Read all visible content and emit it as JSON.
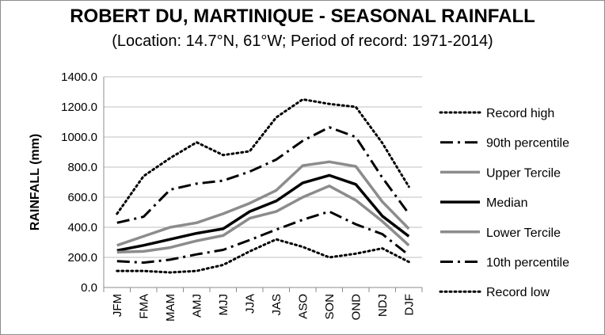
{
  "chart_data": {
    "type": "line",
    "title": "ROBERT DU, MARTINIQUE - SEASONAL RAINFALL",
    "subtitle": "(Location: 14.7°N, 61°W; Period of record: 1971-2014)",
    "ylabel": "RAINFALL (mm)",
    "xlabel": "",
    "ylim": [
      0,
      1400
    ],
    "y_ticks": [
      "0.0",
      "200.0",
      "400.0",
      "600.0",
      "800.0",
      "1000.0",
      "1200.0",
      "1400.0"
    ],
    "grid": "horizontal",
    "legend_position": "right",
    "categories": [
      "JFM",
      "FMA",
      "MAM",
      "AMJ",
      "MJJ",
      "JJA",
      "JAS",
      "ASO",
      "SON",
      "OND",
      "NDJ",
      "DJF"
    ],
    "series": [
      {
        "name": "Record high",
        "style": "dotted",
        "color": "#000000",
        "values": [
          490,
          740,
          860,
          965,
          880,
          905,
          1130,
          1250,
          1220,
          1200,
          960,
          670
        ]
      },
      {
        "name": "90th percentile",
        "style": "dashdot",
        "color": "#000000",
        "values": [
          430,
          470,
          650,
          690,
          710,
          770,
          850,
          975,
          1065,
          1000,
          730,
          490
        ]
      },
      {
        "name": "Upper Tercile",
        "style": "solid",
        "color": "#8c8c8c",
        "values": [
          280,
          340,
          400,
          430,
          490,
          560,
          645,
          810,
          835,
          805,
          570,
          390
        ]
      },
      {
        "name": "Median",
        "style": "solid",
        "color": "#000000",
        "values": [
          245,
          280,
          320,
          360,
          390,
          505,
          575,
          695,
          745,
          685,
          475,
          340
        ]
      },
      {
        "name": "Lower Tercile",
        "style": "solid",
        "color": "#8c8c8c",
        "values": [
          235,
          240,
          265,
          310,
          345,
          460,
          505,
          600,
          675,
          580,
          440,
          280
        ]
      },
      {
        "name": "10th percentile",
        "style": "dashdot",
        "color": "#000000",
        "values": [
          175,
          165,
          185,
          220,
          250,
          315,
          385,
          450,
          505,
          420,
          355,
          215
        ]
      },
      {
        "name": "Record low",
        "style": "dotted",
        "color": "#000000",
        "values": [
          110,
          110,
          100,
          110,
          150,
          240,
          320,
          270,
          200,
          225,
          260,
          170
        ]
      }
    ]
  }
}
